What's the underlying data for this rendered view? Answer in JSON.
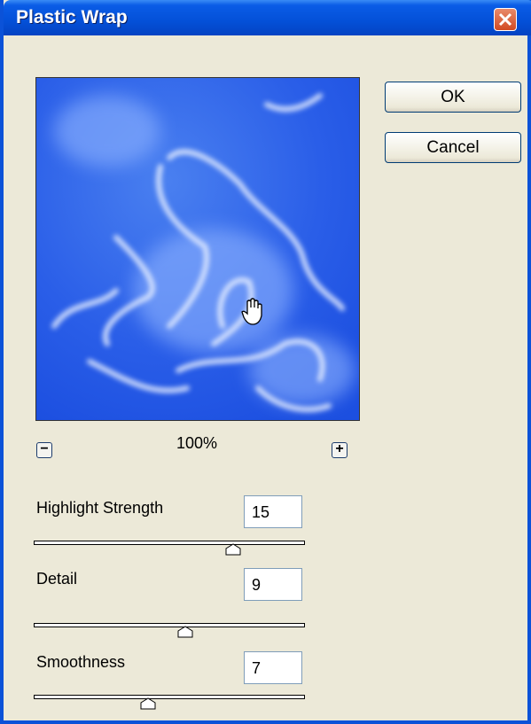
{
  "window": {
    "title": "Plastic Wrap"
  },
  "buttons": [
    "OK",
    "Cancel"
  ],
  "preview": {
    "zoom": "100%"
  },
  "controls": [
    {
      "label": "Highlight Strength",
      "value": 15
    },
    {
      "label": "Detail",
      "value": 9
    },
    {
      "label": "Smoothness",
      "value": 7
    }
  ]
}
